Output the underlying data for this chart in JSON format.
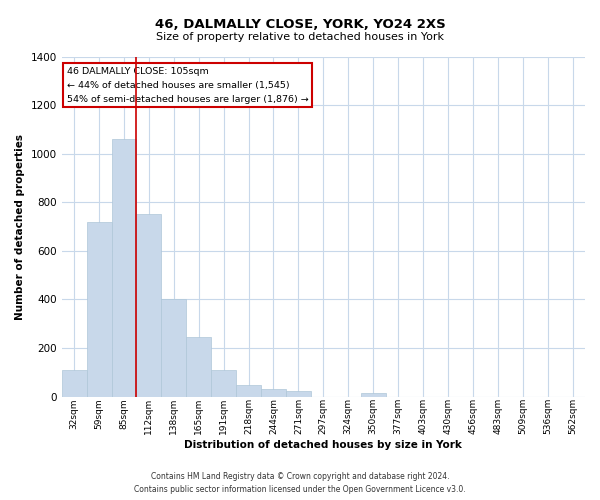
{
  "title": "46, DALMALLY CLOSE, YORK, YO24 2XS",
  "subtitle": "Size of property relative to detached houses in York",
  "xlabel": "Distribution of detached houses by size in York",
  "ylabel": "Number of detached properties",
  "bar_labels": [
    "32sqm",
    "59sqm",
    "85sqm",
    "112sqm",
    "138sqm",
    "165sqm",
    "191sqm",
    "218sqm",
    "244sqm",
    "271sqm",
    "297sqm",
    "324sqm",
    "350sqm",
    "377sqm",
    "403sqm",
    "430sqm",
    "456sqm",
    "483sqm",
    "509sqm",
    "536sqm",
    "562sqm"
  ],
  "bar_heights": [
    110,
    720,
    1060,
    750,
    400,
    245,
    110,
    50,
    30,
    25,
    0,
    0,
    15,
    0,
    0,
    0,
    0,
    0,
    0,
    0,
    0
  ],
  "bar_color": "#c8d8ea",
  "bar_edge_color": "#aec6d8",
  "vline_color": "#cc0000",
  "vline_position": 2.5,
  "ylim": [
    0,
    1400
  ],
  "yticks": [
    0,
    200,
    400,
    600,
    800,
    1000,
    1200,
    1400
  ],
  "annotation_title": "46 DALMALLY CLOSE: 105sqm",
  "annotation_line1": "← 44% of detached houses are smaller (1,545)",
  "annotation_line2": "54% of semi-detached houses are larger (1,876) →",
  "annotation_box_facecolor": "#ffffff",
  "annotation_box_edgecolor": "#cc0000",
  "footer_line1": "Contains HM Land Registry data © Crown copyright and database right 2024.",
  "footer_line2": "Contains public sector information licensed under the Open Government Licence v3.0.",
  "background_color": "#ffffff",
  "grid_color": "#c8d8ea"
}
